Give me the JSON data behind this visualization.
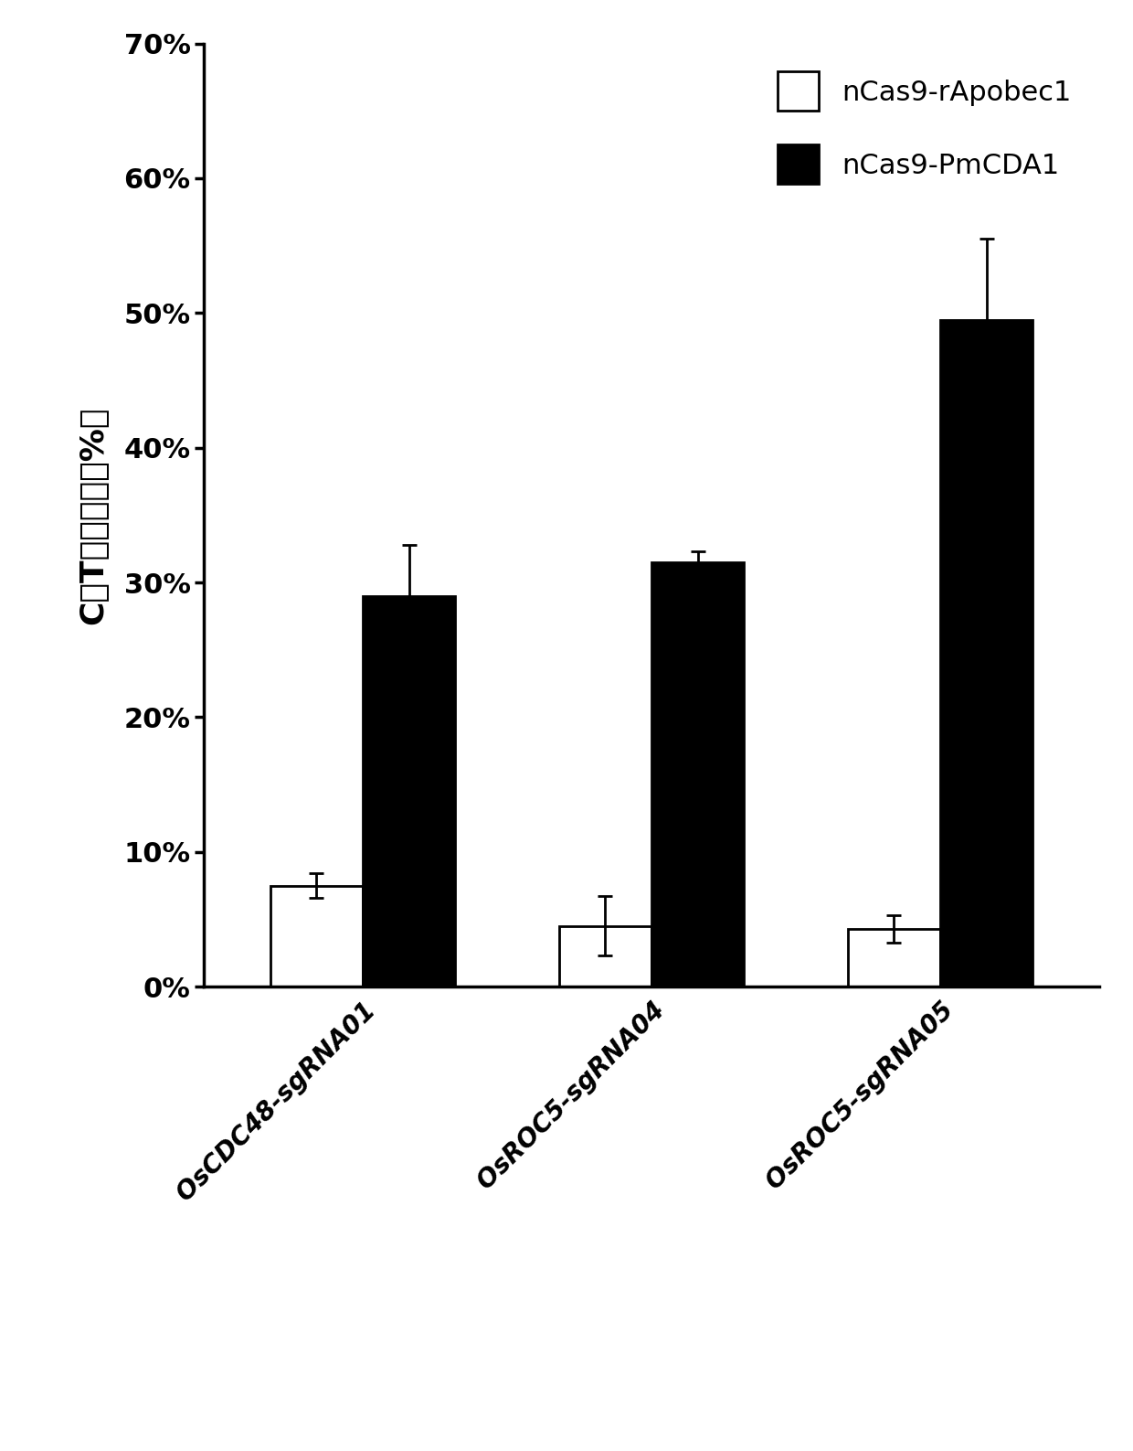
{
  "categories": [
    "OsCDC48-sgRNA01",
    "OsROC5-sgRNA04",
    "OsROC5-sgRNA05"
  ],
  "values_white": [
    0.075,
    0.045,
    0.043
  ],
  "values_black": [
    0.29,
    0.315,
    0.495
  ],
  "errors_white": [
    0.009,
    0.022,
    0.01
  ],
  "errors_black": [
    0.038,
    0.008,
    0.06
  ],
  "legend_labels": [
    "nCas9-rApobec1",
    "nCas9-PmCDA1"
  ],
  "ylabel": "C－T编辑效率（%）",
  "ylim": [
    0,
    0.7
  ],
  "yticks": [
    0.0,
    0.1,
    0.2,
    0.3,
    0.4,
    0.5,
    0.6,
    0.7
  ],
  "ytick_labels": [
    "0%",
    "10%",
    "20%",
    "30%",
    "40%",
    "50%",
    "60%",
    "70%"
  ],
  "bar_width": 0.32,
  "white_color": "#ffffff",
  "black_color": "#000000",
  "edge_color": "#000000",
  "background_color": "#ffffff",
  "font_size_yticks": 22,
  "font_size_ylabel": 26,
  "font_size_legend": 22,
  "font_size_xticks": 20
}
